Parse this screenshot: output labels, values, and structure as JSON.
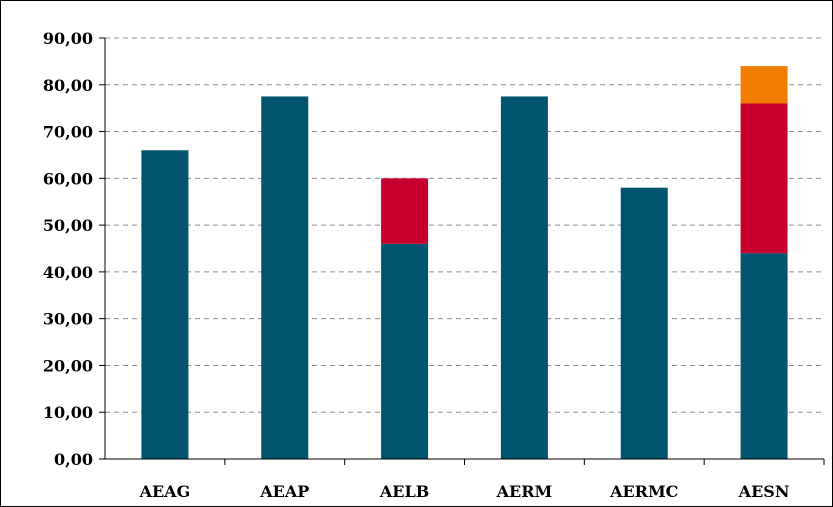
{
  "chart_data": {
    "type": "bar",
    "stacked": true,
    "title": "",
    "xlabel": "",
    "ylabel": "",
    "ylim": [
      0,
      90
    ],
    "y_ticks": [
      0,
      10,
      20,
      30,
      40,
      50,
      60,
      70,
      80,
      90
    ],
    "y_tick_labels": [
      "0,00",
      "10,00",
      "20,00",
      "30,00",
      "40,00",
      "50,00",
      "60,00",
      "70,00",
      "80,00",
      "90,00"
    ],
    "grid": "horizontal dashed",
    "legend": "none",
    "categories": [
      "AEAG",
      "AEAP",
      "AELB",
      "AERM",
      "AERMC",
      "AESN"
    ],
    "series": [
      {
        "color": "#00546e",
        "values": [
          66,
          77.5,
          46,
          77.5,
          58,
          44
        ]
      },
      {
        "color": "#c8002f",
        "values": [
          0,
          0,
          14,
          0,
          0,
          32
        ]
      },
      {
        "color": "#f07d00",
        "values": [
          0,
          0,
          0,
          0,
          0,
          8
        ]
      }
    ]
  }
}
